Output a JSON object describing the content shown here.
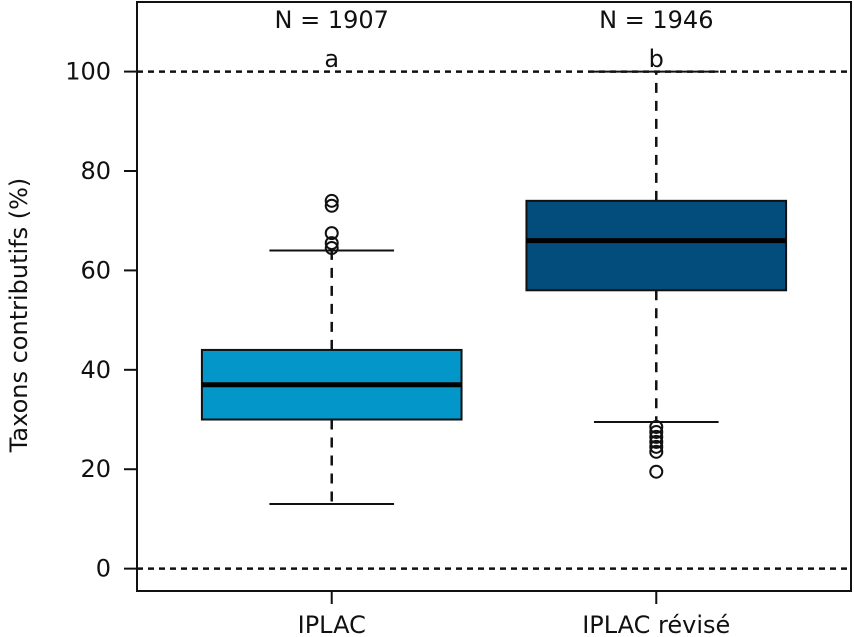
{
  "chart_data": {
    "type": "boxplot",
    "xlabel": "",
    "ylabel": "Taxons contributifs (%)",
    "ylim": [
      -4.5,
      114
    ],
    "yticks": [
      0,
      20,
      40,
      60,
      80,
      100
    ],
    "ytick_labels": [
      "0",
      "20",
      "40",
      "60",
      "80",
      "100"
    ],
    "grid": false,
    "reference_lines": [
      0,
      100
    ],
    "categories": [
      "IPLAC",
      "IPLAC révisé"
    ],
    "series": [
      {
        "name": "IPLAC",
        "color": "#0396c8",
        "whisker_low": 13,
        "q1": 30,
        "median": 37,
        "q3": 44,
        "whisker_high": 64,
        "outliers": [
          64.5,
          65.5,
          67.5,
          73,
          74
        ],
        "n_label": "N = 1907",
        "group_letter": "a"
      },
      {
        "name": "IPLAC révisé",
        "color": "#024d7c",
        "whisker_low": 29.5,
        "q1": 56,
        "median": 66,
        "q3": 74,
        "whisker_high": 100,
        "outliers": [
          19.5,
          23.5,
          24.5,
          25.5,
          26.5,
          27.5,
          28.5
        ],
        "n_label": "N = 1946",
        "group_letter": "b"
      }
    ]
  }
}
